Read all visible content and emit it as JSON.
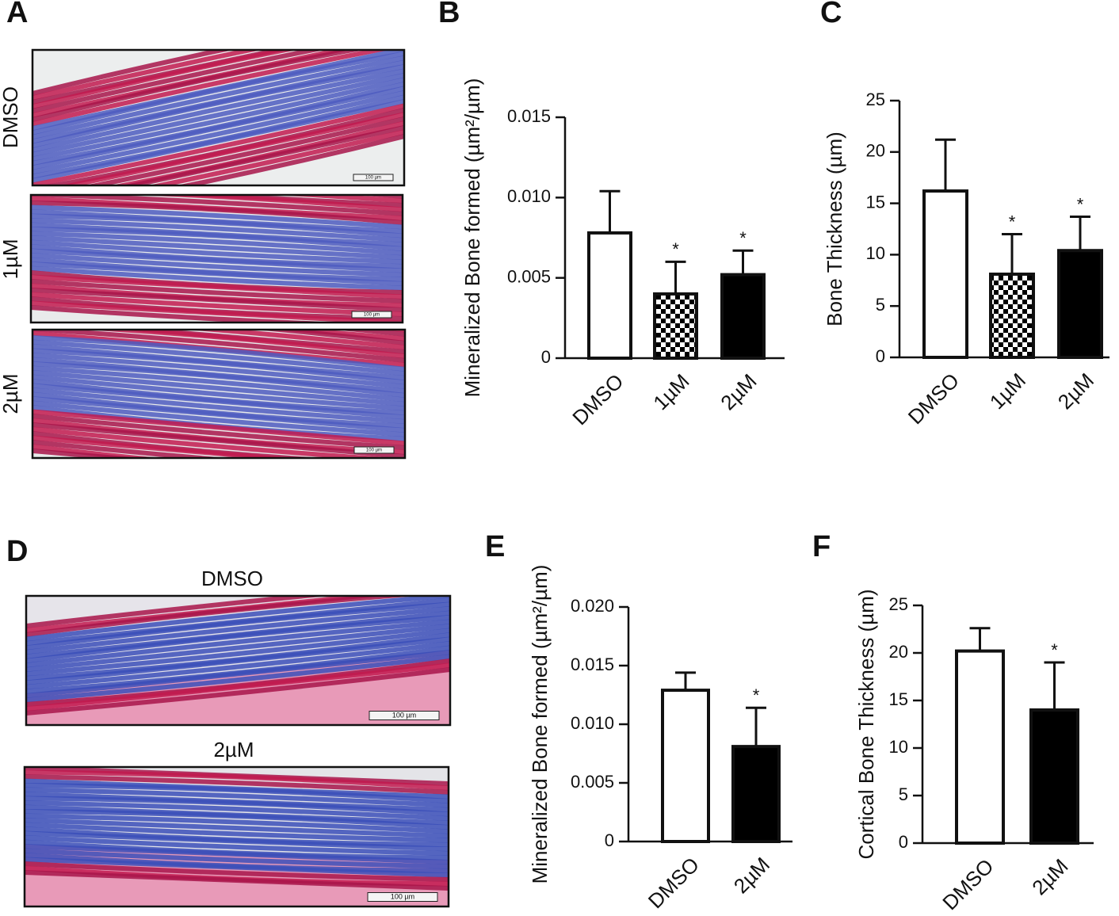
{
  "micrographs": [
    {
      "panel": "A",
      "labels": [
        "DMSO",
        "1µM",
        "2µM"
      ]
    },
    {
      "panel": "D",
      "labels": [
        "DMSO",
        "2µM"
      ]
    }
  ],
  "scale_bar_label": "100 µm",
  "chart_data": [
    {
      "type": "bar",
      "panel": "B",
      "ylabel": "Mineralized Bone formed (µm²/µm)",
      "categories": [
        "DMSO",
        "1µM",
        "2µM"
      ],
      "values": [
        0.0078,
        0.004,
        0.0052
      ],
      "errors": [
        0.0026,
        0.002,
        0.0015
      ],
      "annotations": [
        null,
        "*",
        "*"
      ],
      "fills": [
        "#ffffff",
        "checkerboard",
        "#000000"
      ],
      "ylim": [
        0,
        0.015
      ],
      "yticks": [
        0,
        0.005,
        {
          "value": 0.01,
          "label": "0.010"
        },
        0.015
      ]
    },
    {
      "type": "bar",
      "panel": "C",
      "ylabel": "Bone Thickness (µm)",
      "categories": [
        "DMSO",
        "1µM",
        "2µM"
      ],
      "values": [
        16.2,
        8.1,
        10.4
      ],
      "errors": [
        5.0,
        3.9,
        3.3
      ],
      "annotations": [
        null,
        "*",
        "*"
      ],
      "fills": [
        "#ffffff",
        "checkerboard",
        "#000000"
      ],
      "ylim": [
        0,
        25
      ],
      "yticks": [
        0,
        5,
        10,
        15,
        20,
        25
      ]
    },
    {
      "type": "bar",
      "panel": "E",
      "ylabel": "Mineralized Bone formed (µm²/µm)",
      "categories": [
        "DMSO",
        "2µM"
      ],
      "values": [
        0.0129,
        0.0081
      ],
      "errors": [
        0.0015,
        0.0033
      ],
      "annotations": [
        null,
        "*"
      ],
      "fills": [
        "#ffffff",
        "#000000"
      ],
      "ylim": [
        0,
        0.02
      ],
      "yticks": [
        0,
        0.005,
        {
          "value": 0.01,
          "label": "0.010"
        },
        0.015,
        {
          "value": 0.02,
          "label": "0.020"
        }
      ]
    },
    {
      "type": "bar",
      "panel": "F",
      "ylabel": "Cortical Bone Thickness (µm)",
      "categories": [
        "DMSO",
        "2µM"
      ],
      "values": [
        20.2,
        14.0
      ],
      "errors": [
        2.4,
        5.0
      ],
      "annotations": [
        null,
        "*"
      ],
      "fills": [
        "#ffffff",
        "#000000"
      ],
      "ylim": [
        0,
        25
      ],
      "yticks": [
        0,
        5,
        10,
        15,
        20,
        25
      ]
    }
  ]
}
